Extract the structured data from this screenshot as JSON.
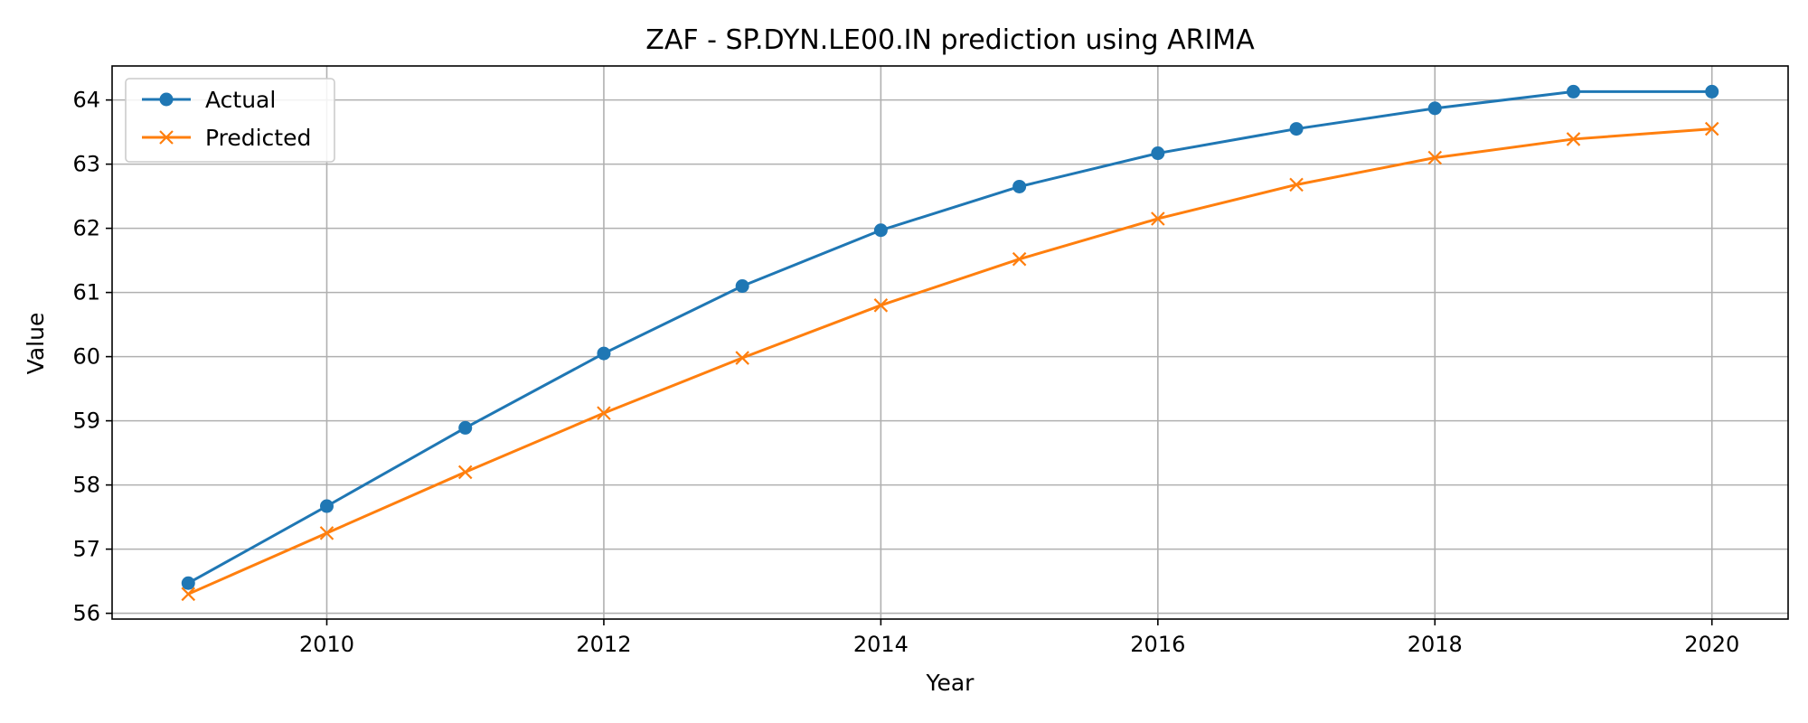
{
  "chart_data": {
    "type": "line",
    "title": "ZAF - SP.DYN.LE00.IN prediction using ARIMA",
    "xlabel": "Year",
    "ylabel": "Value",
    "x": [
      2009,
      2010,
      2011,
      2012,
      2013,
      2014,
      2015,
      2016,
      2017,
      2018,
      2019,
      2020
    ],
    "xlim": [
      2008.45,
      2020.55
    ],
    "ylim": [
      55.91,
      64.53
    ],
    "xticks": [
      2010,
      2012,
      2014,
      2016,
      2018,
      2020
    ],
    "yticks": [
      56,
      57,
      58,
      59,
      60,
      61,
      62,
      63,
      64
    ],
    "grid": true,
    "legend_position": "top-left",
    "series": [
      {
        "name": "Actual",
        "color": "#1f77b4",
        "marker": "circle",
        "values": [
          56.47,
          57.67,
          58.89,
          60.05,
          61.1,
          61.97,
          62.65,
          63.17,
          63.55,
          63.87,
          64.13,
          64.13
        ]
      },
      {
        "name": "Predicted",
        "color": "#ff7f0e",
        "marker": "x",
        "values": [
          56.3,
          57.25,
          58.2,
          59.12,
          59.98,
          60.8,
          61.52,
          62.15,
          62.68,
          63.1,
          63.39,
          63.55
        ]
      }
    ]
  }
}
